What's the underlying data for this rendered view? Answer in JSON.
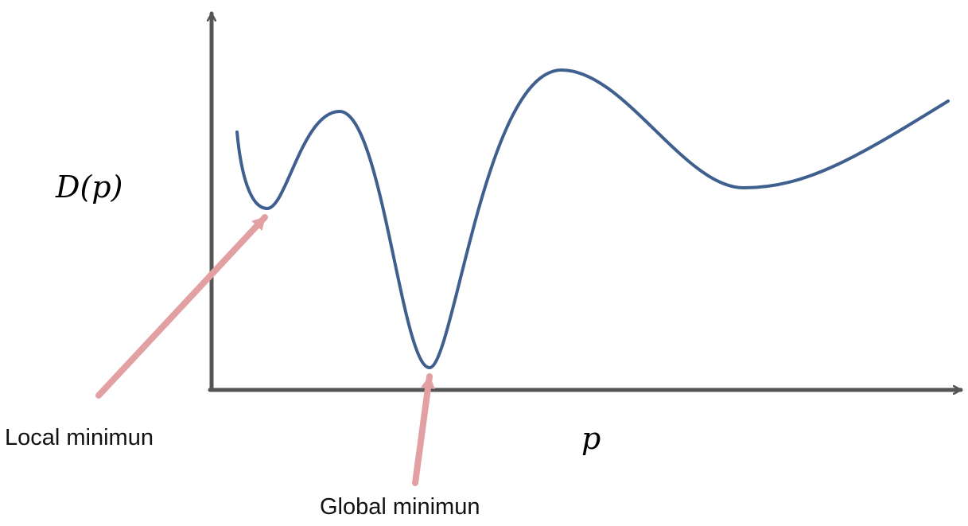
{
  "diagram": {
    "y_axis_label": "D(p)",
    "x_axis_label": "p",
    "annotations": {
      "local_minimum": "Local minimun",
      "global_minimum": "Global minimun"
    }
  },
  "colors": {
    "axis": "#555555",
    "curve": "#3f5f8f",
    "arrow": "#e3a0a3",
    "text": "#111111"
  }
}
